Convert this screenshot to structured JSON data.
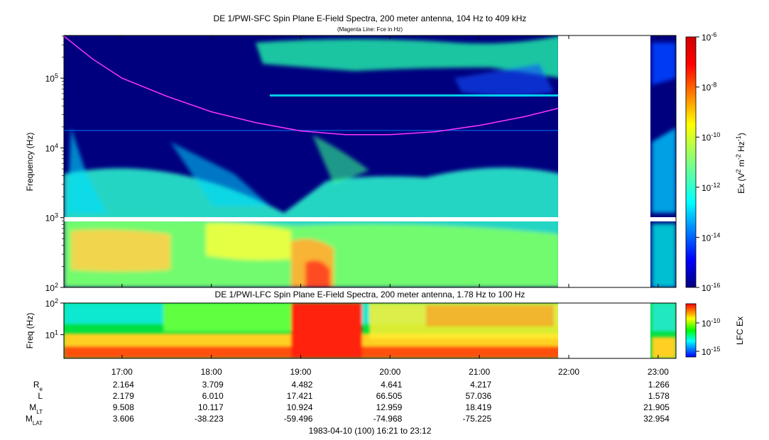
{
  "chart_data": [
    {
      "type": "heatmap",
      "title": "DE 1/PWI-SFC  Spin Plane E-Field Spectra, 200 meter antenna, 104 Hz to 409 kHz",
      "subtitle": "(Magenta Line: Fce in Hz)",
      "ylabel": "Frequency (Hz)",
      "yscale": "log",
      "ylim": [
        100,
        409000
      ],
      "yticks": [
        {
          "base": "10",
          "exp": "2"
        },
        {
          "base": "10",
          "exp": "3"
        },
        {
          "base": "10",
          "exp": "4"
        },
        {
          "base": "10",
          "exp": "5"
        }
      ],
      "xlim": [
        "16:21",
        "23:12"
      ],
      "data_gaps": [
        {
          "from": "21:53",
          "to": "22:55"
        }
      ],
      "fce_line_color": "#ff33ff",
      "fce_line": {
        "time": [
          "16:21",
          "16:40",
          "17:00",
          "17:30",
          "18:00",
          "18:30",
          "19:00",
          "19:30",
          "20:00",
          "20:30",
          "21:00",
          "21:30",
          "21:53"
        ],
        "freq_hz": [
          400000,
          190000,
          100000,
          55000,
          33000,
          23000,
          17500,
          15500,
          15500,
          17000,
          21000,
          28000,
          37000
        ]
      },
      "colorbar": {
        "label_parts": [
          "Ex (V",
          "2",
          " m",
          "-2",
          " Hz",
          "-1",
          ")"
        ],
        "scale": "log",
        "range": [
          1e-16,
          1e-06
        ],
        "ticks": [
          {
            "base": "10",
            "exp": "-6"
          },
          {
            "base": "10",
            "exp": "-8"
          },
          {
            "base": "10",
            "exp": "-10"
          },
          {
            "base": "10",
            "exp": "-12"
          },
          {
            "base": "10",
            "exp": "-14"
          },
          {
            "base": "10",
            "exp": "-16"
          }
        ]
      }
    },
    {
      "type": "heatmap",
      "title": "DE 1/PWI-LFC  Spin Plane E-Field Spectra, 200 meter antenna, 1.78 Hz to 100 Hz",
      "ylabel": "Freq (Hz)",
      "yscale": "log",
      "ylim": [
        1.78,
        100
      ],
      "yticks": [
        {
          "base": "10",
          "exp": "1"
        },
        {
          "base": "10",
          "exp": "2"
        }
      ],
      "xlim": [
        "16:21",
        "23:12"
      ],
      "data_gaps": [
        {
          "from": "21:53",
          "to": "22:55"
        }
      ],
      "colorbar": {
        "label": "LFC Ex",
        "scale": "log",
        "ticks": [
          {
            "base": "10",
            "exp": "-10"
          },
          {
            "base": "10",
            "exp": "-15"
          }
        ]
      }
    }
  ],
  "time_axis": {
    "tick_labels": [
      "17:00",
      "18:00",
      "19:00",
      "20:00",
      "21:00",
      "22:00",
      "23:00"
    ]
  },
  "ephemeris": {
    "rows": [
      {
        "label": "R",
        "label_sub": "e",
        "values": [
          "2.164",
          "3.709",
          "4.482",
          "4.641",
          "4.217",
          "",
          "1.266"
        ]
      },
      {
        "label": "L",
        "label_sub": "",
        "values": [
          "2.179",
          "6.010",
          "17.421",
          "66.505",
          "57.036",
          "",
          "1.578"
        ]
      },
      {
        "label": "M",
        "label_sub": "LT",
        "values": [
          "9.508",
          "10.117",
          "10.924",
          "12.959",
          "18.419",
          "",
          "21.905"
        ]
      },
      {
        "label": "M",
        "label_sub": "LAT",
        "values": [
          "3.606",
          "-38.223",
          "-59.496",
          "-74.968",
          "-75.225",
          "",
          "32.954"
        ]
      }
    ]
  },
  "footer": "1983-04-10 (100) 16:21 to 23:12"
}
